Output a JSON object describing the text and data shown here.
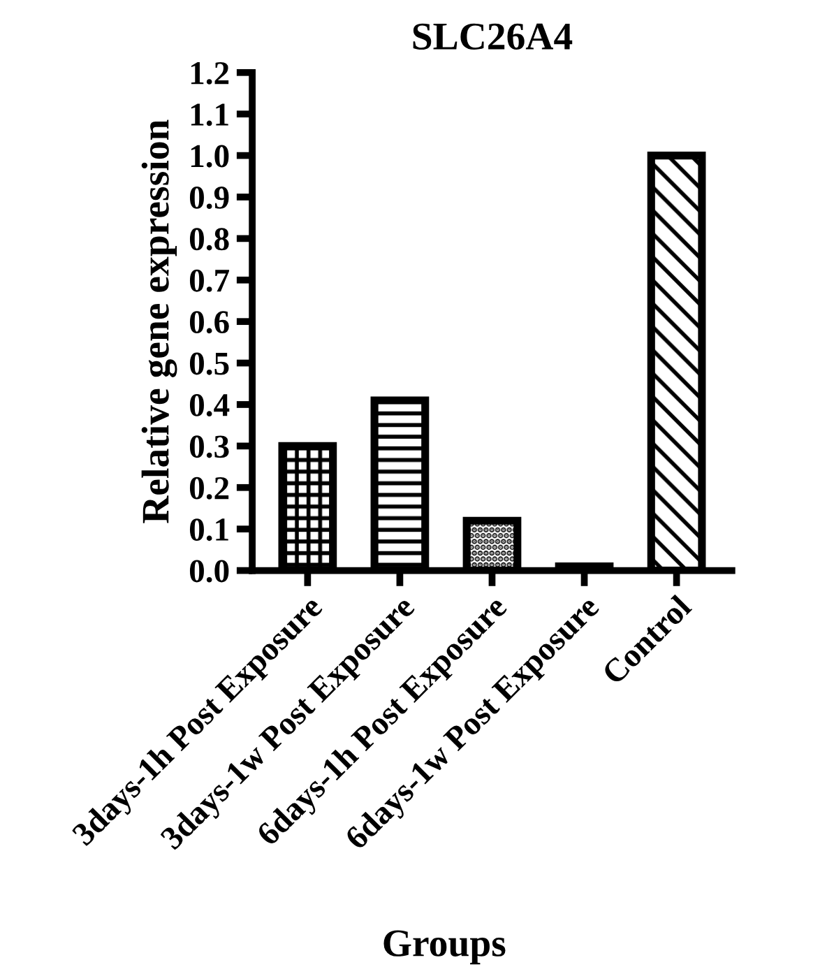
{
  "chart_data": {
    "type": "bar",
    "title": "SLC26A4",
    "xlabel": "Groups",
    "ylabel": "Relative gene expression",
    "categories": [
      "3days-1h Post Exposure",
      "3days-1w Post Exposure",
      "6days-1h Post Exposure",
      "6days-1w Post Exposure",
      "Control"
    ],
    "values": [
      0.3,
      0.41,
      0.12,
      0.01,
      1.0
    ],
    "color": "#000000",
    "ylim": [
      0,
      1.2
    ],
    "yticks": [
      {
        "value": 0,
        "label": "0.0"
      },
      {
        "value": 0.1,
        "label": "0.1"
      },
      {
        "value": 0.2,
        "label": "0.2"
      },
      {
        "value": 0.3,
        "label": "0.3"
      },
      {
        "value": 0.4,
        "label": "0.4"
      },
      {
        "value": 0.5,
        "label": "0.5"
      },
      {
        "value": 0.6,
        "label": "0.6"
      },
      {
        "value": 0.7,
        "label": "0.7"
      },
      {
        "value": 0.8,
        "label": "0.8"
      },
      {
        "value": 0.9,
        "label": "0.9"
      },
      {
        "value": 1.0,
        "label": "1.0"
      },
      {
        "value": 1.1,
        "label": "1.1"
      },
      {
        "value": 1.2,
        "label": "1.2"
      }
    ],
    "grid": false
  }
}
